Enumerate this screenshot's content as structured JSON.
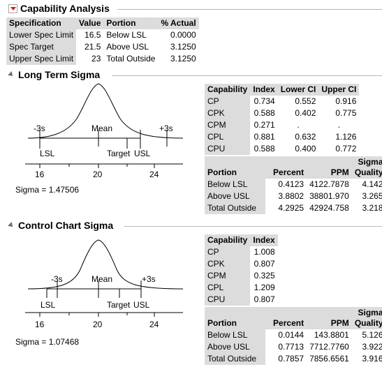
{
  "capability_analysis": {
    "title": "Capability Analysis",
    "headers": [
      "Specification",
      "Value",
      "Portion",
      "% Actual"
    ],
    "rows": [
      {
        "spec": "Lower Spec Limit",
        "value": "16.5",
        "portion": "Below LSL",
        "actual": "0.0000"
      },
      {
        "spec": "Spec Target",
        "value": "21.5",
        "portion": "Above USL",
        "actual": "3.1250"
      },
      {
        "spec": "Upper Spec Limit",
        "value": "23",
        "portion": "Total Outside",
        "actual": "3.1250"
      }
    ]
  },
  "long_term": {
    "title": "Long Term Sigma",
    "plot": {
      "labels": {
        "minus3s": "-3s",
        "mean": "Mean",
        "plus3s": "+3s",
        "lsl": "LSL",
        "target": "Target",
        "usl": "USL"
      },
      "ticks": [
        "16",
        "20",
        "24"
      ],
      "sigma_text": "Sigma = 1.47506"
    },
    "capability": {
      "headers": [
        "Capability",
        "Index",
        "Lower CI",
        "Upper CI"
      ],
      "rows": [
        {
          "name": "CP",
          "index": "0.734",
          "lower": "0.552",
          "upper": "0.916"
        },
        {
          "name": "CPK",
          "index": "0.588",
          "lower": "0.402",
          "upper": "0.775"
        },
        {
          "name": "CPM",
          "index": "0.271",
          "lower": ".",
          "upper": "."
        },
        {
          "name": "CPL",
          "index": "0.881",
          "lower": "0.632",
          "upper": "1.126"
        },
        {
          "name": "CPU",
          "index": "0.588",
          "lower": "0.400",
          "upper": "0.772"
        }
      ]
    },
    "portion": {
      "headers": [
        "Portion",
        "Percent",
        "PPM",
        "Sigma",
        "Quality"
      ],
      "rows": [
        {
          "name": "Below LSL",
          "percent": "0.4123",
          "ppm": "4122.7878",
          "quality": "4.142"
        },
        {
          "name": "Above USL",
          "percent": "3.8802",
          "ppm": "38801.970",
          "quality": "3.265"
        },
        {
          "name": "Total Outside",
          "percent": "4.2925",
          "ppm": "42924.758",
          "quality": "3.218"
        }
      ]
    }
  },
  "control_chart": {
    "title": "Control Chart Sigma",
    "plot": {
      "labels": {
        "minus3s": "-3s",
        "mean": "Mean",
        "plus3s": "+3s",
        "lsl": "LSL",
        "target": "Target",
        "usl": "USL"
      },
      "ticks": [
        "16",
        "20",
        "24"
      ],
      "sigma_text": "Sigma = 1.07468"
    },
    "capability": {
      "headers": [
        "Capability",
        "Index"
      ],
      "rows": [
        {
          "name": "CP",
          "index": "1.008"
        },
        {
          "name": "CPK",
          "index": "0.807"
        },
        {
          "name": "CPM",
          "index": "0.325"
        },
        {
          "name": "CPL",
          "index": "1.209"
        },
        {
          "name": "CPU",
          "index": "0.807"
        }
      ]
    },
    "portion": {
      "headers": [
        "Portion",
        "Percent",
        "PPM",
        "Sigma",
        "Quality"
      ],
      "rows": [
        {
          "name": "Below LSL",
          "percent": "0.0144",
          "ppm": "143.8801",
          "quality": "5.126"
        },
        {
          "name": "Above USL",
          "percent": "0.7713",
          "ppm": "7712.7760",
          "quality": "3.922"
        },
        {
          "name": "Total Outside",
          "percent": "0.7857",
          "ppm": "7856.6561",
          "quality": "3.916"
        }
      ]
    }
  }
}
